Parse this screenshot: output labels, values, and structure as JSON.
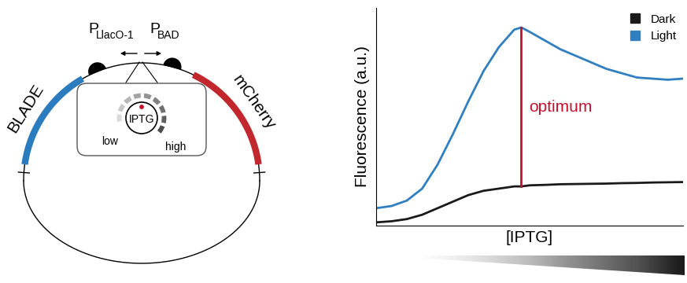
{
  "plasmid": {
    "parts": [
      {
        "label": "BLADE",
        "color": "#2b7bbf"
      },
      {
        "label": "mCherry",
        "color": "#c1272d"
      }
    ],
    "promoters": [
      {
        "name": "P",
        "subscript": "LlacO-1"
      },
      {
        "name": "P",
        "subscript": "BAD"
      }
    ],
    "dial": {
      "label": "IPTG",
      "low": "low",
      "high": "high"
    }
  },
  "chart_data": {
    "type": "line",
    "x": [
      0,
      0.5,
      1,
      1.5,
      2,
      2.5,
      3,
      3.5,
      4,
      4.5,
      4.73,
      5,
      5.5,
      6,
      6.5,
      7,
      7.5,
      8,
      8.5,
      9,
      9.5,
      10
    ],
    "series": [
      {
        "name": "Dark",
        "color": "#1a1a1a",
        "values": [
          0.15,
          0.2,
          0.3,
          0.5,
          0.8,
          1.1,
          1.4,
          1.6,
          1.7,
          1.8,
          1.8,
          1.85,
          1.87,
          1.9,
          1.91,
          1.92,
          1.93,
          1.95,
          1.96,
          1.98,
          1.99,
          2.0
        ]
      },
      {
        "name": "Light",
        "color": "#2f7fc1",
        "values": [
          0.8,
          0.9,
          1.15,
          1.7,
          2.8,
          4.2,
          5.7,
          7.1,
          8.2,
          9.0,
          9.1,
          8.9,
          8.5,
          8.1,
          7.8,
          7.5,
          7.2,
          7.0,
          6.8,
          6.75,
          6.7,
          6.75
        ]
      }
    ],
    "xlabel": "[IPTG]",
    "ylabel": "Fluorescence (a.u.)",
    "xlim": [
      0,
      10
    ],
    "ylim": [
      0,
      10
    ],
    "tick_labels": false,
    "legend": "upper right",
    "annotations": [
      {
        "text": "optimum",
        "x": 4.73,
        "y_from": 1.8,
        "y_to": 9.1,
        "color": "#c8102e"
      }
    ]
  }
}
